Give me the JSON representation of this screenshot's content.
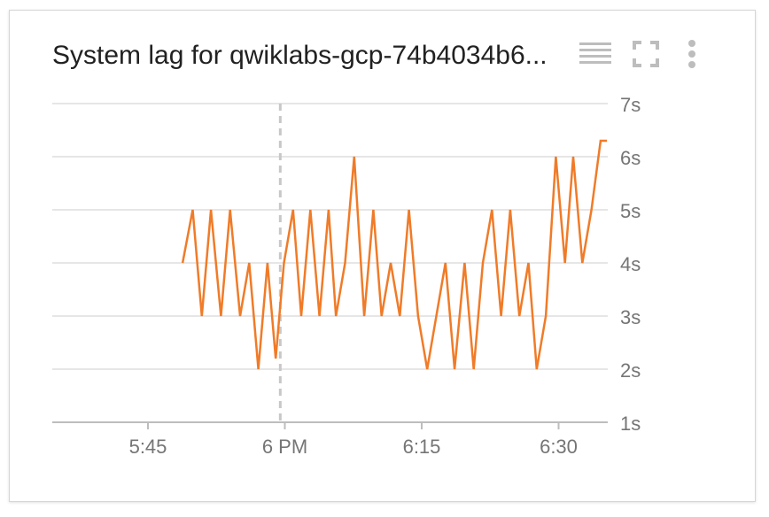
{
  "card": {
    "title": "System lag for qwiklabs-gcp-74b4034b6...",
    "icons": [
      "legend-toggle-icon",
      "fullscreen-icon",
      "more-vert-icon"
    ]
  },
  "chart_data": {
    "type": "line",
    "title": "System lag for qwiklabs-gcp-74b4034b6...",
    "xlabel": "",
    "ylabel": "",
    "x_tick_labels": [
      "5:45",
      "6 PM",
      "6:15",
      "6:30"
    ],
    "y_tick_labels": [
      "1s",
      "2s",
      "3s",
      "4s",
      "5s",
      "6s",
      "7s"
    ],
    "ylim": [
      1,
      7
    ],
    "y_unit": "s",
    "grid": true,
    "cursor_line_minutes_after_5_45": 14.5,
    "series": [
      {
        "color": "#f07b28",
        "x_minutes_after_5_45": [
          3.8,
          4.9,
          5.9,
          6.9,
          8.0,
          9.0,
          10.1,
          11.1,
          12.1,
          13.1,
          14.0,
          14.9,
          15.9,
          16.8,
          17.8,
          18.8,
          19.8,
          20.6,
          21.6,
          22.6,
          23.7,
          24.7,
          25.6,
          26.6,
          27.6,
          28.6,
          29.6,
          30.6,
          31.6,
          32.6,
          33.6,
          34.7,
          35.7,
          36.7,
          37.7,
          38.7,
          39.7,
          40.7,
          41.7,
          42.6,
          43.6,
          44.7,
          45.7,
          46.6,
          47.6,
          48.6,
          49.6,
          50.3
        ],
        "values": [
          4,
          5,
          3,
          5,
          3,
          5,
          3,
          4,
          2,
          4,
          2.2,
          4,
          5,
          3,
          5,
          3,
          5,
          3,
          4,
          6,
          3,
          5,
          3,
          4,
          3,
          5,
          3,
          2,
          3,
          4,
          2,
          4,
          2,
          4,
          5,
          3,
          5,
          3,
          4,
          2,
          3,
          6,
          4,
          6,
          4,
          5,
          6.3,
          6.3
        ]
      }
    ]
  }
}
